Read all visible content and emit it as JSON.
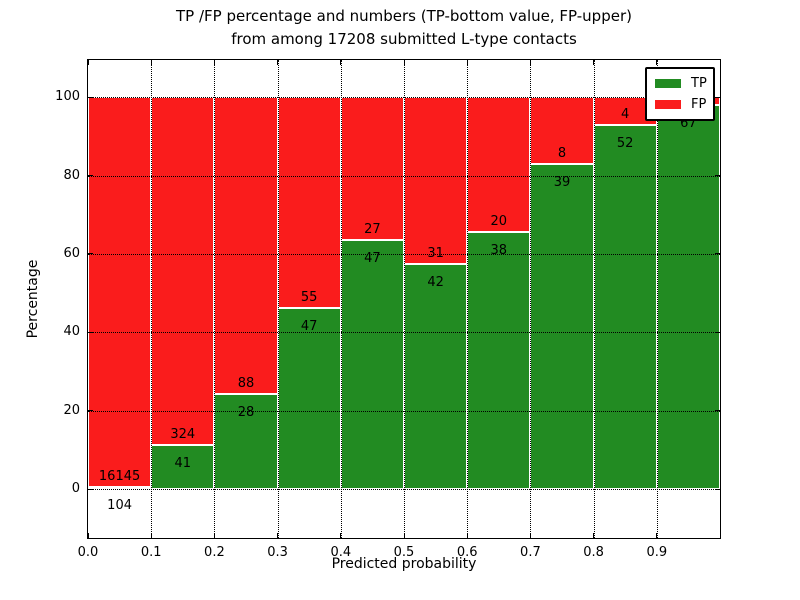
{
  "chart_data": {
    "type": "bar",
    "stacked": true,
    "title": "TP /FP percentage and numbers (TP-bottom value, FP-upper)\nfrom among 17208 submitted L-type contacts",
    "title_lines": [
      "TP /FP percentage and numbers (TP-bottom value, FP-upper)",
      "from among 17208 submitted L-type contacts"
    ],
    "xlabel": "Predicted probability",
    "ylabel": "Percentage",
    "xlim": [
      0.0,
      1.0
    ],
    "ylim": [
      -12.5,
      109.5
    ],
    "x_ticks": [
      "0.0",
      "0.1",
      "0.2",
      "0.3",
      "0.4",
      "0.5",
      "0.6",
      "0.7",
      "0.8",
      "0.9"
    ],
    "y_ticks": [
      0,
      20,
      40,
      60,
      80,
      100
    ],
    "grid": true,
    "legend_position": "upper right",
    "series": [
      {
        "name": "TP",
        "color": "#228b22",
        "values_pct": [
          0.64,
          11.23,
          24.14,
          46.08,
          63.51,
          57.53,
          65.52,
          82.98,
          92.86,
          98.0
        ],
        "counts": [
          104,
          41,
          28,
          47,
          47,
          42,
          38,
          39,
          52,
          67
        ]
      },
      {
        "name": "FP",
        "color": "#fa1c1c",
        "values_pct": [
          99.36,
          88.77,
          75.86,
          53.92,
          36.49,
          42.47,
          34.48,
          17.02,
          7.14,
          2.0
        ],
        "counts": [
          16145,
          324,
          88,
          55,
          27,
          31,
          20,
          8,
          4,
          null
        ]
      }
    ],
    "bins": [
      {
        "range": [
          0.0,
          0.1
        ],
        "tp_label": "104",
        "fp_label": "16145",
        "tp_pct": 0.64
      },
      {
        "range": [
          0.1,
          0.2
        ],
        "tp_label": "41",
        "fp_label": "324",
        "tp_pct": 11.23
      },
      {
        "range": [
          0.2,
          0.3
        ],
        "tp_label": "28",
        "fp_label": "88",
        "tp_pct": 24.14
      },
      {
        "range": [
          0.3,
          0.4
        ],
        "tp_label": "47",
        "fp_label": "55",
        "tp_pct": 46.08
      },
      {
        "range": [
          0.4,
          0.5
        ],
        "tp_label": "47",
        "fp_label": "27",
        "tp_pct": 63.51
      },
      {
        "range": [
          0.5,
          0.6
        ],
        "tp_label": "42",
        "fp_label": "31",
        "tp_pct": 57.53
      },
      {
        "range": [
          0.6,
          0.7
        ],
        "tp_label": "38",
        "fp_label": "20",
        "tp_pct": 65.52
      },
      {
        "range": [
          0.7,
          0.8
        ],
        "tp_label": "39",
        "fp_label": "8",
        "tp_pct": 82.98
      },
      {
        "range": [
          0.8,
          0.9
        ],
        "tp_label": "52",
        "fp_label": "4",
        "tp_pct": 92.86
      },
      {
        "range": [
          0.9,
          1.0
        ],
        "tp_label": "67",
        "fp_label": "",
        "tp_pct": 98.0
      }
    ]
  }
}
